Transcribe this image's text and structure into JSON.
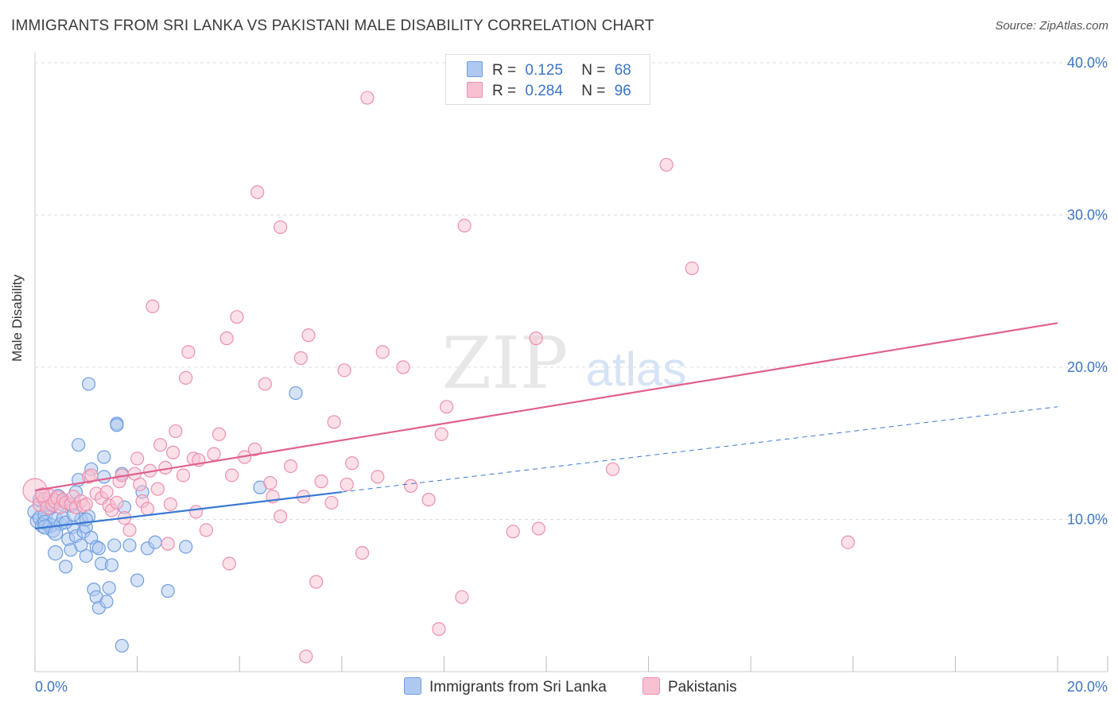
{
  "title": "IMMIGRANTS FROM SRI LANKA VS PAKISTANI MALE DISABILITY CORRELATION CHART",
  "source": "Source: ZipAtlas.com",
  "watermark": {
    "zip": "ZIP",
    "atlas": "atlas"
  },
  "legend_top": [
    {
      "r_label": "R =",
      "r_value": "0.125",
      "n_label": "N =",
      "n_value": "68",
      "color": "#aec8ef",
      "border": "#6f9ee0"
    },
    {
      "r_label": "R =",
      "r_value": "0.284",
      "n_label": "N =",
      "n_value": "96",
      "color": "#f7c1d2",
      "border": "#ec8fae"
    }
  ],
  "legend_bottom": [
    {
      "label": "Immigrants from Sri Lanka",
      "color": "#aec8ef",
      "border": "#6f9ee0"
    },
    {
      "label": "Pakistanis",
      "color": "#f7c1d2",
      "border": "#ec8fae"
    }
  ],
  "chart_data": {
    "type": "scatter",
    "xlabel": "",
    "ylabel": "Male Disability",
    "xlim": [
      0,
      20
    ],
    "ylim": [
      0,
      40
    ],
    "x_tick_labels": [
      "0.0%",
      "20.0%"
    ],
    "y_ticks": [
      10,
      20,
      30,
      40
    ],
    "y_tick_labels": [
      "10.0%",
      "20.0%",
      "30.0%",
      "40.0%"
    ],
    "grid": true,
    "colors": {
      "series1": "#3a78d4",
      "series2": "#e0608e",
      "axis_text": "#3d74c4"
    },
    "series": [
      {
        "name": "Immigrants from Sri Lanka",
        "color": "#aec8ef",
        "stroke": "#6f9ee0",
        "trend": {
          "x": [
            0,
            6.0
          ],
          "y": [
            9.4,
            11.8
          ]
        },
        "trend_extension": {
          "x": [
            6.0,
            20.0
          ],
          "y": [
            11.8,
            17.4
          ]
        },
        "points": [
          [
            0.0,
            10.5
          ],
          [
            0.05,
            9.9
          ],
          [
            0.1,
            10.1
          ],
          [
            0.15,
            9.6
          ],
          [
            0.2,
            10.3
          ],
          [
            0.2,
            9.8
          ],
          [
            0.25,
            11.0
          ],
          [
            0.3,
            9.6
          ],
          [
            0.3,
            10.8
          ],
          [
            0.35,
            9.3
          ],
          [
            0.4,
            10.0
          ],
          [
            0.4,
            7.8
          ],
          [
            0.45,
            11.5
          ],
          [
            0.5,
            9.7
          ],
          [
            0.55,
            11.2
          ],
          [
            0.55,
            10.1
          ],
          [
            0.6,
            6.9
          ],
          [
            0.65,
            8.7
          ],
          [
            0.7,
            10.9
          ],
          [
            0.7,
            8.0
          ],
          [
            0.75,
            9.5
          ],
          [
            0.8,
            11.8
          ],
          [
            0.8,
            8.9
          ],
          [
            0.85,
            12.6
          ],
          [
            0.9,
            10.0
          ],
          [
            0.9,
            8.3
          ],
          [
            0.95,
            9.2
          ],
          [
            1.0,
            7.6
          ],
          [
            1.0,
            9.5
          ],
          [
            1.05,
            10.2
          ],
          [
            1.1,
            13.3
          ],
          [
            1.1,
            8.8
          ],
          [
            1.15,
            5.4
          ],
          [
            1.2,
            4.9
          ],
          [
            1.2,
            8.2
          ],
          [
            1.25,
            4.2
          ],
          [
            1.25,
            8.1
          ],
          [
            1.3,
            7.1
          ],
          [
            1.35,
            14.1
          ],
          [
            1.35,
            12.8
          ],
          [
            1.4,
            4.6
          ],
          [
            1.45,
            5.5
          ],
          [
            1.5,
            7.0
          ],
          [
            1.55,
            8.3
          ],
          [
            1.6,
            16.3
          ],
          [
            1.7,
            1.7
          ],
          [
            1.7,
            13.0
          ],
          [
            1.75,
            10.8
          ],
          [
            1.85,
            8.3
          ],
          [
            2.0,
            6.0
          ],
          [
            2.1,
            11.8
          ],
          [
            2.2,
            8.1
          ],
          [
            2.35,
            8.5
          ],
          [
            2.6,
            5.3
          ],
          [
            2.95,
            8.2
          ],
          [
            4.4,
            12.1
          ],
          [
            5.1,
            18.3
          ],
          [
            0.85,
            14.9
          ],
          [
            1.05,
            18.9
          ],
          [
            0.1,
            11.3
          ],
          [
            0.3,
            11.1
          ],
          [
            0.5,
            11.0
          ],
          [
            0.2,
            9.5
          ],
          [
            0.6,
            9.8
          ],
          [
            0.75,
            10.3
          ],
          [
            1.0,
            10.0
          ],
          [
            0.4,
            9.1
          ],
          [
            1.6,
            16.2
          ]
        ]
      },
      {
        "name": "Pakistanis",
        "color": "#f7c1d2",
        "stroke": "#ec8fae",
        "trend": {
          "x": [
            0,
            20.0
          ],
          "y": [
            11.9,
            22.9
          ]
        },
        "points": [
          [
            0.0,
            11.9
          ],
          [
            0.1,
            11.0
          ],
          [
            0.2,
            11.3
          ],
          [
            0.25,
            10.8
          ],
          [
            0.3,
            11.5
          ],
          [
            0.35,
            11.0
          ],
          [
            0.4,
            11.2
          ],
          [
            0.45,
            11.4
          ],
          [
            0.5,
            10.8
          ],
          [
            0.55,
            11.3
          ],
          [
            0.6,
            11.1
          ],
          [
            0.7,
            11.0
          ],
          [
            0.75,
            11.5
          ],
          [
            0.8,
            10.8
          ],
          [
            0.9,
            11.2
          ],
          [
            0.95,
            10.9
          ],
          [
            1.0,
            11.0
          ],
          [
            1.05,
            12.8
          ],
          [
            1.1,
            12.9
          ],
          [
            1.2,
            11.7
          ],
          [
            1.3,
            11.4
          ],
          [
            1.4,
            11.8
          ],
          [
            1.45,
            10.9
          ],
          [
            1.5,
            10.6
          ],
          [
            1.6,
            11.1
          ],
          [
            1.65,
            12.5
          ],
          [
            1.7,
            12.9
          ],
          [
            1.75,
            10.1
          ],
          [
            1.85,
            9.3
          ],
          [
            1.95,
            13.0
          ],
          [
            2.0,
            14.0
          ],
          [
            2.05,
            12.3
          ],
          [
            2.1,
            11.2
          ],
          [
            2.2,
            10.7
          ],
          [
            2.25,
            13.2
          ],
          [
            2.3,
            24.0
          ],
          [
            2.4,
            12.0
          ],
          [
            2.45,
            14.9
          ],
          [
            2.55,
            13.4
          ],
          [
            2.6,
            8.4
          ],
          [
            2.65,
            11.0
          ],
          [
            2.7,
            14.4
          ],
          [
            2.75,
            15.8
          ],
          [
            2.9,
            12.9
          ],
          [
            2.95,
            19.3
          ],
          [
            3.0,
            21.0
          ],
          [
            3.1,
            14.0
          ],
          [
            3.15,
            10.5
          ],
          [
            3.2,
            13.9
          ],
          [
            3.35,
            9.3
          ],
          [
            3.5,
            14.3
          ],
          [
            3.6,
            15.6
          ],
          [
            3.75,
            21.9
          ],
          [
            3.8,
            7.1
          ],
          [
            3.85,
            12.9
          ],
          [
            3.95,
            23.3
          ],
          [
            4.1,
            14.1
          ],
          [
            4.3,
            14.6
          ],
          [
            4.35,
            31.5
          ],
          [
            4.5,
            18.9
          ],
          [
            4.6,
            12.4
          ],
          [
            4.65,
            11.5
          ],
          [
            4.8,
            29.2
          ],
          [
            4.8,
            10.2
          ],
          [
            5.0,
            13.5
          ],
          [
            5.2,
            20.6
          ],
          [
            5.25,
            11.5
          ],
          [
            5.3,
            1.0
          ],
          [
            5.35,
            22.1
          ],
          [
            5.5,
            5.9
          ],
          [
            5.6,
            12.5
          ],
          [
            5.8,
            11.1
          ],
          [
            5.85,
            16.4
          ],
          [
            6.05,
            19.8
          ],
          [
            6.1,
            12.3
          ],
          [
            6.2,
            13.7
          ],
          [
            6.4,
            7.8
          ],
          [
            6.5,
            37.7
          ],
          [
            6.7,
            12.8
          ],
          [
            6.8,
            21.0
          ],
          [
            7.2,
            20.0
          ],
          [
            7.35,
            12.2
          ],
          [
            7.7,
            11.3
          ],
          [
            7.9,
            2.8
          ],
          [
            7.95,
            15.6
          ],
          [
            8.05,
            17.4
          ],
          [
            8.35,
            4.9
          ],
          [
            8.4,
            29.3
          ],
          [
            9.35,
            9.2
          ],
          [
            9.8,
            21.9
          ],
          [
            9.85,
            9.4
          ],
          [
            11.3,
            13.3
          ],
          [
            12.35,
            33.3
          ],
          [
            12.85,
            26.5
          ],
          [
            15.9,
            8.5
          ],
          [
            0.15,
            11.6
          ]
        ]
      }
    ]
  }
}
